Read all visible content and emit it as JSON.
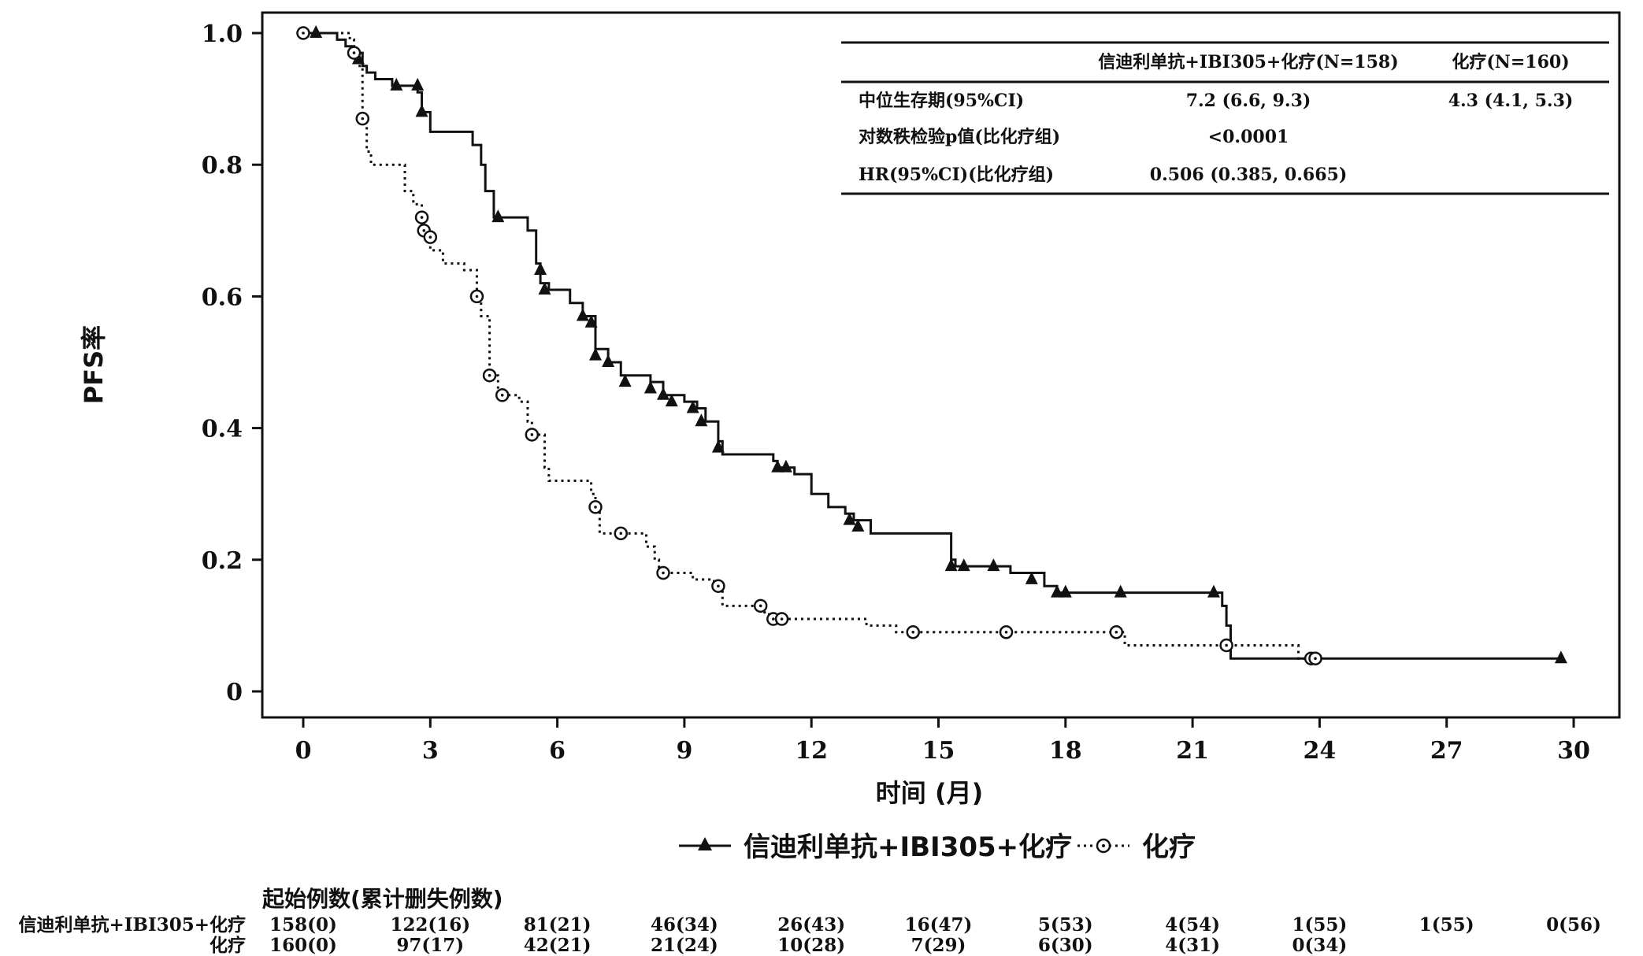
{
  "chart_data": {
    "type": "line",
    "ylabel": "PFS率",
    "xlabel": "时间 (月)",
    "xlim": [
      0,
      30
    ],
    "ylim": [
      0,
      1.0
    ],
    "xticks": [
      0,
      3,
      6,
      9,
      12,
      15,
      18,
      21,
      24,
      27,
      30
    ],
    "yticks": [
      0,
      0.2,
      0.4,
      0.6,
      0.8,
      1.0
    ],
    "ytick_labels": [
      "0",
      "0.2",
      "0.4",
      "0.6",
      "0.8",
      "1.0"
    ],
    "grid": false,
    "legend_position": "bottom",
    "series": [
      {
        "name": "信迪利单抗+IBI305+化疗",
        "line_style": "solid",
        "marker": "filled-triangle",
        "steps": [
          [
            0,
            1.0
          ],
          [
            0.3,
            1.0
          ],
          [
            0.8,
            0.99
          ],
          [
            1.0,
            0.98
          ],
          [
            1.2,
            0.97
          ],
          [
            1.4,
            0.95
          ],
          [
            1.5,
            0.94
          ],
          [
            1.7,
            0.93
          ],
          [
            2.1,
            0.92
          ],
          [
            2.6,
            0.92
          ],
          [
            2.7,
            0.91
          ],
          [
            2.8,
            0.88
          ],
          [
            3.0,
            0.85
          ],
          [
            3.8,
            0.85
          ],
          [
            4.0,
            0.83
          ],
          [
            4.2,
            0.8
          ],
          [
            4.3,
            0.76
          ],
          [
            4.5,
            0.72
          ],
          [
            5.0,
            0.72
          ],
          [
            5.3,
            0.7
          ],
          [
            5.5,
            0.65
          ],
          [
            5.6,
            0.62
          ],
          [
            5.8,
            0.61
          ],
          [
            6.3,
            0.59
          ],
          [
            6.6,
            0.57
          ],
          [
            6.9,
            0.52
          ],
          [
            7.2,
            0.5
          ],
          [
            7.5,
            0.48
          ],
          [
            8.2,
            0.47
          ],
          [
            8.5,
            0.45
          ],
          [
            9.0,
            0.44
          ],
          [
            9.3,
            0.43
          ],
          [
            9.5,
            0.41
          ],
          [
            9.8,
            0.38
          ],
          [
            9.9,
            0.36
          ],
          [
            11.0,
            0.36
          ],
          [
            11.1,
            0.35
          ],
          [
            11.2,
            0.34
          ],
          [
            11.6,
            0.33
          ],
          [
            12.0,
            0.3
          ],
          [
            12.4,
            0.28
          ],
          [
            12.8,
            0.27
          ],
          [
            13.0,
            0.26
          ],
          [
            13.4,
            0.24
          ],
          [
            15.2,
            0.24
          ],
          [
            15.3,
            0.2
          ],
          [
            15.4,
            0.19
          ],
          [
            16.0,
            0.19
          ],
          [
            16.7,
            0.18
          ],
          [
            17.5,
            0.16
          ],
          [
            17.8,
            0.15
          ],
          [
            21.6,
            0.15
          ],
          [
            21.7,
            0.13
          ],
          [
            21.8,
            0.1
          ],
          [
            21.9,
            0.05
          ],
          [
            29.7,
            0.05
          ]
        ],
        "censor": [
          [
            0.3,
            1.0
          ],
          [
            1.3,
            0.96
          ],
          [
            2.2,
            0.92
          ],
          [
            2.7,
            0.92
          ],
          [
            2.8,
            0.88
          ],
          [
            4.6,
            0.72
          ],
          [
            5.6,
            0.64
          ],
          [
            5.7,
            0.61
          ],
          [
            6.6,
            0.57
          ],
          [
            6.8,
            0.56
          ],
          [
            6.9,
            0.51
          ],
          [
            7.2,
            0.5
          ],
          [
            7.6,
            0.47
          ],
          [
            8.2,
            0.46
          ],
          [
            8.5,
            0.45
          ],
          [
            8.7,
            0.44
          ],
          [
            9.2,
            0.43
          ],
          [
            9.4,
            0.41
          ],
          [
            9.8,
            0.37
          ],
          [
            11.2,
            0.34
          ],
          [
            11.4,
            0.34
          ],
          [
            12.9,
            0.26
          ],
          [
            13.1,
            0.25
          ],
          [
            15.3,
            0.19
          ],
          [
            15.6,
            0.19
          ],
          [
            16.3,
            0.19
          ],
          [
            17.2,
            0.17
          ],
          [
            17.8,
            0.15
          ],
          [
            18.0,
            0.15
          ],
          [
            19.3,
            0.15
          ],
          [
            21.5,
            0.15
          ],
          [
            29.7,
            0.05
          ]
        ]
      },
      {
        "name": "化疗",
        "line_style": "dotted",
        "marker": "open-circle-dot",
        "steps": [
          [
            0,
            1.0
          ],
          [
            1.1,
            0.99
          ],
          [
            1.2,
            0.97
          ],
          [
            1.3,
            0.95
          ],
          [
            1.4,
            0.87
          ],
          [
            1.5,
            0.82
          ],
          [
            1.6,
            0.8
          ],
          [
            2.0,
            0.8
          ],
          [
            2.4,
            0.76
          ],
          [
            2.6,
            0.74
          ],
          [
            2.8,
            0.7
          ],
          [
            3.0,
            0.67
          ],
          [
            3.3,
            0.65
          ],
          [
            3.8,
            0.64
          ],
          [
            4.1,
            0.6
          ],
          [
            4.2,
            0.57
          ],
          [
            4.4,
            0.48
          ],
          [
            4.6,
            0.45
          ],
          [
            5.1,
            0.44
          ],
          [
            5.3,
            0.41
          ],
          [
            5.4,
            0.39
          ],
          [
            5.7,
            0.34
          ],
          [
            5.8,
            0.32
          ],
          [
            6.8,
            0.3
          ],
          [
            6.9,
            0.28
          ],
          [
            7.0,
            0.24
          ],
          [
            7.6,
            0.24
          ],
          [
            8.1,
            0.22
          ],
          [
            8.3,
            0.2
          ],
          [
            8.4,
            0.18
          ],
          [
            9.2,
            0.17
          ],
          [
            9.7,
            0.16
          ],
          [
            9.9,
            0.13
          ],
          [
            10.6,
            0.13
          ],
          [
            10.8,
            0.12
          ],
          [
            11.0,
            0.11
          ],
          [
            13.1,
            0.11
          ],
          [
            13.3,
            0.1
          ],
          [
            13.6,
            0.1
          ],
          [
            14.0,
            0.09
          ],
          [
            19.3,
            0.09
          ],
          [
            19.4,
            0.07
          ],
          [
            23.3,
            0.07
          ],
          [
            23.5,
            0.05
          ],
          [
            23.9,
            0.05
          ]
        ],
        "censor": [
          [
            0,
            1.0
          ],
          [
            1.2,
            0.97
          ],
          [
            1.4,
            0.87
          ],
          [
            2.8,
            0.72
          ],
          [
            2.85,
            0.7
          ],
          [
            3.0,
            0.69
          ],
          [
            4.1,
            0.6
          ],
          [
            4.4,
            0.48
          ],
          [
            4.7,
            0.45
          ],
          [
            5.4,
            0.39
          ],
          [
            6.9,
            0.28
          ],
          [
            7.5,
            0.24
          ],
          [
            8.5,
            0.18
          ],
          [
            9.8,
            0.16
          ],
          [
            10.8,
            0.13
          ],
          [
            11.1,
            0.11
          ],
          [
            11.3,
            0.11
          ],
          [
            14.4,
            0.09
          ],
          [
            16.6,
            0.09
          ],
          [
            19.2,
            0.09
          ],
          [
            21.8,
            0.07
          ],
          [
            23.8,
            0.05
          ],
          [
            23.9,
            0.05
          ]
        ]
      }
    ]
  },
  "stats_table": {
    "headers": [
      "",
      "信迪利单抗+IBI305+化疗(N=158)",
      "化疗(N=160)"
    ],
    "rows": [
      [
        "中位生存期(95%CI)",
        "7.2 (6.6, 9.3)",
        "4.3 (4.1, 5.3)"
      ],
      [
        "对数秩检验p值(比化疗组)",
        "<0.0001",
        ""
      ],
      [
        "HR(95%CI)(比化疗组)",
        "0.506 (0.385, 0.665)",
        ""
      ]
    ]
  },
  "risk_table": {
    "title": "起始例数(累计删失例数)",
    "rows": [
      {
        "label": "信迪利单抗+IBI305+化疗",
        "values": [
          "158(0)",
          "122(16)",
          "81(21)",
          "46(34)",
          "26(43)",
          "16(47)",
          "5(53)",
          "4(54)",
          "1(55)",
          "1(55)",
          "0(56)"
        ]
      },
      {
        "label": "化疗",
        "values": [
          "160(0)",
          "97(17)",
          "42(21)",
          "21(24)",
          "10(28)",
          "7(29)",
          "6(30)",
          "4(31)",
          "0(34)",
          "",
          ""
        ]
      }
    ]
  }
}
